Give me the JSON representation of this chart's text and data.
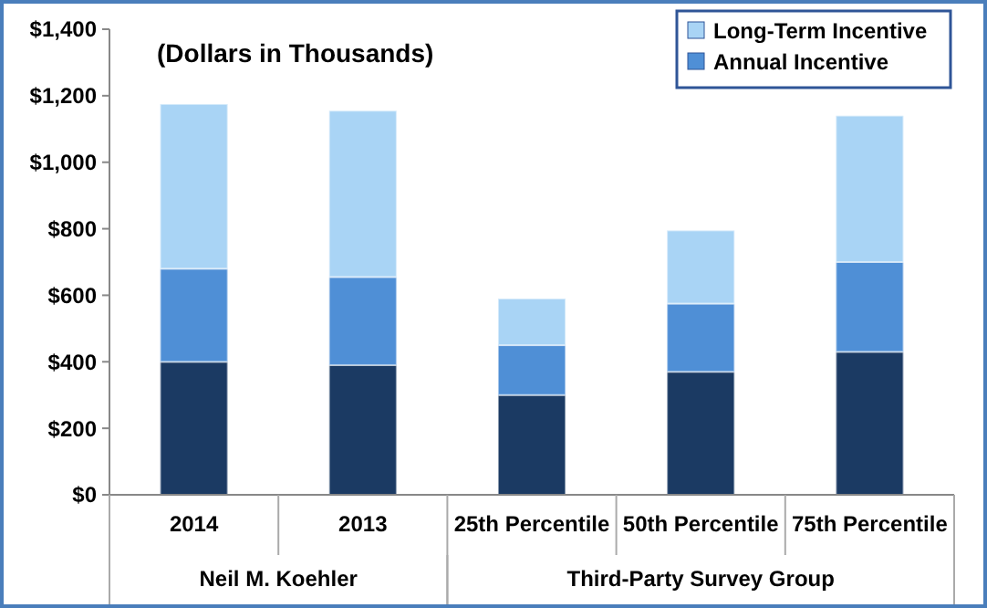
{
  "chart_data": {
    "type": "bar",
    "title": "(Dollars in Thousands)",
    "stacked": true,
    "categories": [
      "2014",
      "2013",
      "25th Percentile",
      "50th Percentile",
      "75th Percentile"
    ],
    "series": [
      {
        "color": "#1b3a63",
        "values": [
          400,
          390,
          300,
          370,
          430
        ]
      },
      {
        "name": "Annual Incentive",
        "color": "#4f8fd6",
        "values": [
          280,
          265,
          150,
          205,
          270
        ]
      },
      {
        "name": "Long-Term Incentive",
        "color": "#a9d4f5",
        "values": [
          495,
          500,
          140,
          220,
          440
        ]
      }
    ],
    "ylim": [
      0,
      1400
    ],
    "yticks": [
      {
        "value": 0,
        "label": "$0"
      },
      {
        "value": 200,
        "label": "$200"
      },
      {
        "value": 400,
        "label": "$400"
      },
      {
        "value": 600,
        "label": "$600"
      },
      {
        "value": 800,
        "label": "$800"
      },
      {
        "value": 1000,
        "label": "$1,000"
      },
      {
        "value": 1200,
        "label": "$1,200"
      },
      {
        "value": 1400,
        "label": "$1,400"
      }
    ],
    "annotations": [
      "Neil M. Koehler",
      "Third-Party Survey Group"
    ],
    "legend": "top right",
    "grid": false
  }
}
